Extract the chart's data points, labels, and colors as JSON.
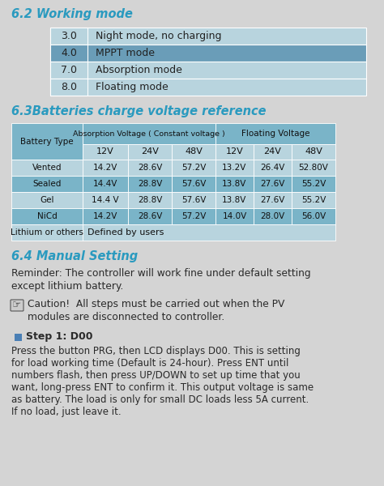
{
  "bg_color": "#d4d4d4",
  "section1_title": "6.2 Working mode",
  "working_mode_rows": [
    {
      "code": "3.0",
      "desc": "Night mode, no charging",
      "highlight": false
    },
    {
      "code": "4.0",
      "desc": "MPPT mode",
      "highlight": true
    },
    {
      "code": "7.0",
      "desc": "Absorption mode",
      "highlight": false
    },
    {
      "code": "8.0",
      "desc": "Floating mode",
      "highlight": false
    }
  ],
  "wm_col_light": "#b8d4de",
  "wm_col_dark": "#6a9db8",
  "wm_text_color": "#222222",
  "section2_title": "6.3Batteries charge voltage reference",
  "batt_header_bg": "#7ab4c8",
  "batt_row_light": "#b8d4de",
  "batt_row_dark": "#7ab4c8",
  "batt_header_row2_bg": "#b8d4de",
  "batt_table": {
    "rows": [
      [
        "Vented",
        "14.2V",
        "28.6V",
        "57.2V",
        "13.2V",
        "26.4V",
        "52.80V"
      ],
      [
        "Sealed",
        "14.4V",
        "28.8V",
        "57.6V",
        "13.8V",
        "27.6V",
        "55.2V"
      ],
      [
        "Gel",
        "14.4 V",
        "28.8V",
        "57.6V",
        "13.8V",
        "27.6V",
        "55.2V"
      ],
      [
        "NiCd",
        "14.2V",
        "28.6V",
        "57.2V",
        "14.0V",
        "28.0V",
        "56.0V"
      ],
      [
        "Lithium or others",
        "Defined by users",
        "",
        "",
        "",
        "",
        ""
      ]
    ]
  },
  "section3_title": "6.4 Manual Setting",
  "title_color": "#2a9abf",
  "body_text_color": "#2a2a2a",
  "step_marker_color": "#4a7fb5",
  "reminder_lines": [
    "Reminder: The controller will work fine under default setting",
    "except lithium battery."
  ],
  "caution_lines": [
    "Caution!  All steps must be carried out when the PV",
    "modules are disconnected to controller."
  ],
  "step1_title": "Step 1: D00",
  "step1_lines": [
    "Press the button PRG, then LCD displays D00. This is setting",
    "for load working time (Default is 24-hour). Press ENT until",
    "numbers flash, then press UP/DOWN to set up time that you",
    "want, long-press ENT to confirm it. This output voltage is same",
    "as battery. The load is only for small DC loads less 5A current.",
    "If no load, just leave it."
  ]
}
